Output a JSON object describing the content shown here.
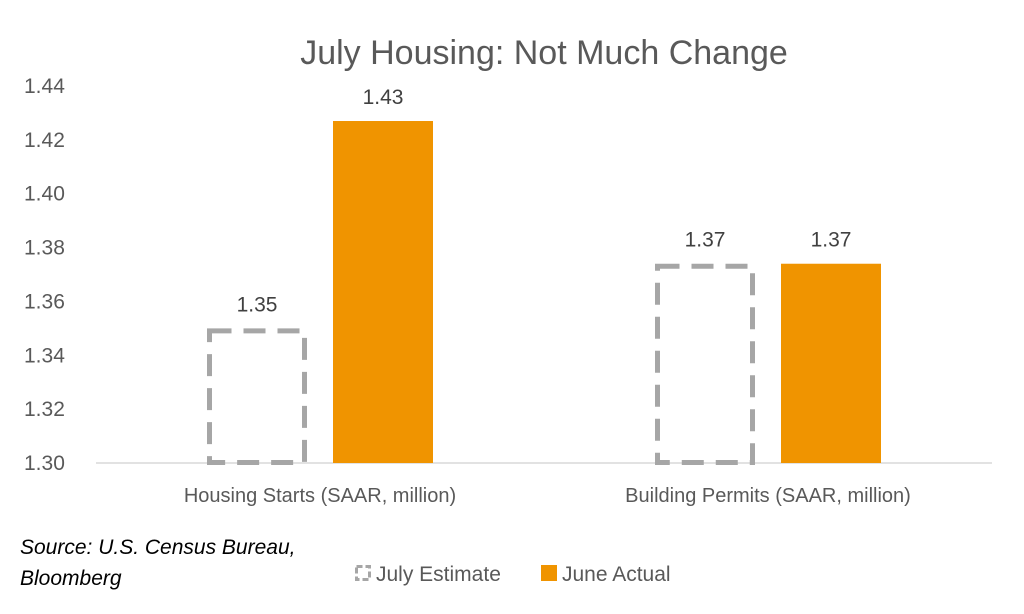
{
  "chart_data": {
    "type": "bar",
    "title": "July Housing: Not Much Change",
    "categories": [
      "Housing Starts (SAAR, million)",
      "Building Permits (SAAR, million)"
    ],
    "series": [
      {
        "name": "July Estimate",
        "values": [
          1.35,
          1.374
        ],
        "labels": [
          "1.35",
          "1.37"
        ],
        "color": "#a6a6a6",
        "style": "dashed-outline"
      },
      {
        "name": "June Actual",
        "values": [
          1.427,
          1.374
        ],
        "labels": [
          "1.43",
          "1.37"
        ],
        "color": "#f09400",
        "style": "solid"
      }
    ],
    "ylim": [
      1.3,
      1.44
    ],
    "yticks": [
      "1.30",
      "1.32",
      "1.34",
      "1.36",
      "1.38",
      "1.40",
      "1.42",
      "1.44"
    ],
    "grid": false,
    "legend_position": "bottom"
  },
  "source": {
    "line1": "Source: U.S. Census Bureau,",
    "line2": "Bloomberg"
  }
}
